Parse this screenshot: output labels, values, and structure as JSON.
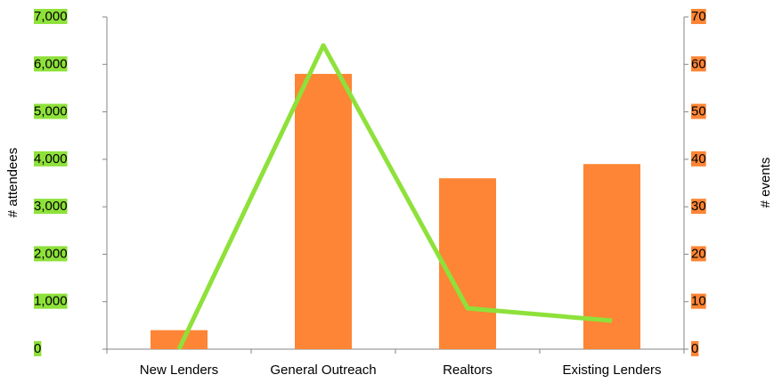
{
  "chart_data": {
    "type": "bar_line",
    "categories": [
      "New Lenders",
      "General Outreach",
      "Realtors",
      "Existing Lenders"
    ],
    "series": [
      {
        "name": "# attendees",
        "type": "bar",
        "color": "#fd8535",
        "axis": "y",
        "values": [
          400,
          5800,
          3600,
          3900
        ]
      },
      {
        "name": "# events",
        "type": "line",
        "color": "#8ee13a",
        "axis": "y2",
        "values": [
          0,
          64,
          8.6,
          6
        ]
      }
    ],
    "ylabel": "# attendees",
    "y2label": "# events",
    "ylim": [
      0,
      7000
    ],
    "yticks": [
      0,
      {
        "value": 1000,
        "label": "1,000"
      },
      {
        "value": 2000,
        "label": "2,000"
      },
      {
        "value": 3000,
        "label": "3,000"
      },
      {
        "value": 4000,
        "label": "4,000"
      },
      {
        "value": 5000,
        "label": "5,000"
      },
      {
        "value": 6000,
        "label": "6,000"
      },
      {
        "value": 7000,
        "label": "7,000"
      }
    ],
    "y2lim": [
      0,
      70
    ],
    "y2ticks": [
      0,
      10,
      20,
      30,
      40,
      50,
      60,
      70
    ],
    "grid": false
  }
}
